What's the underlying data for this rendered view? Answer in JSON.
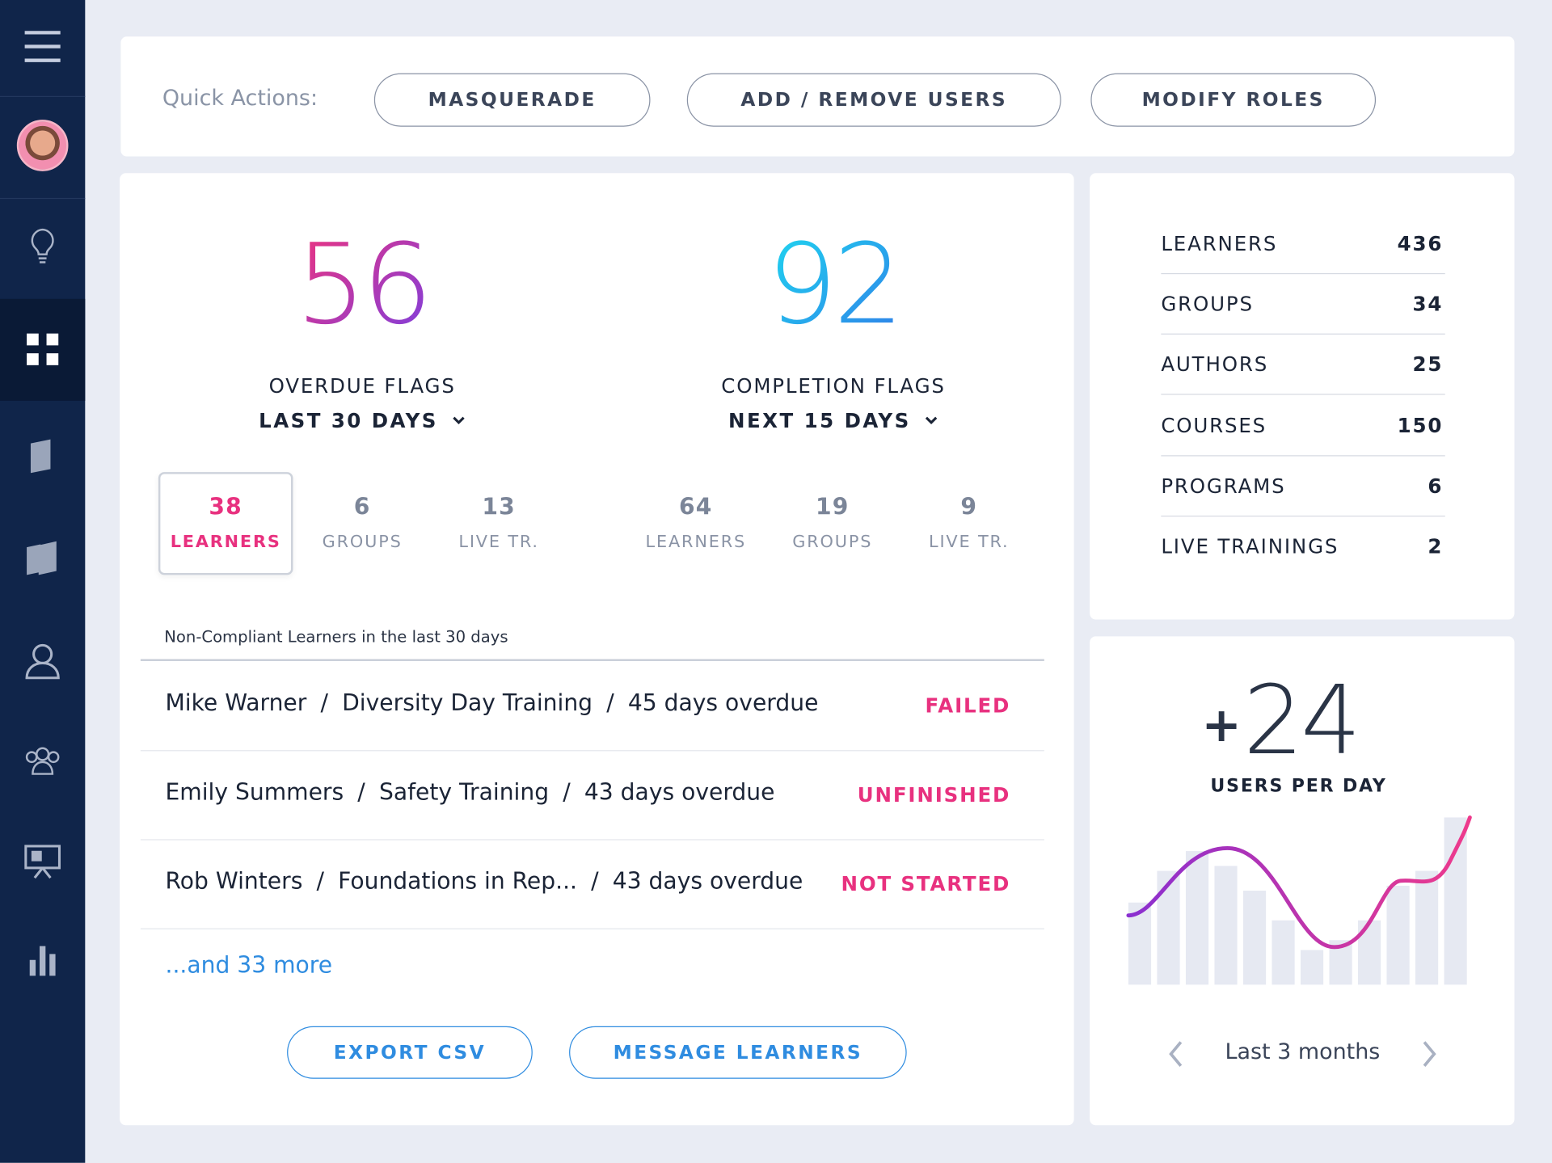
{
  "quick_actions": {
    "label": "Quick Actions:",
    "buttons": [
      "MASQUERADE",
      "ADD / REMOVE USERS",
      "MODIFY ROLES"
    ]
  },
  "flags": [
    {
      "number": 56,
      "title": "OVERDUE FLAGS",
      "period": "LAST 30 DAYS",
      "stats": [
        {
          "value": 38,
          "label": "LEARNERS"
        },
        {
          "value": 6,
          "label": "GROUPS"
        },
        {
          "value": 13,
          "label": "LIVE TR."
        }
      ]
    },
    {
      "number": 92,
      "title": "COMPLETION FLAGS",
      "period": "NEXT 15 DAYS",
      "stats": [
        {
          "value": 64,
          "label": "LEARNERS"
        },
        {
          "value": 19,
          "label": "GROUPS"
        },
        {
          "value": 9,
          "label": "LIVE TR."
        }
      ]
    }
  ],
  "list": {
    "caption": "Non-Compliant Learners in the last 30 days",
    "separator": "/",
    "rows": [
      {
        "name": "Mike Warner",
        "course": "Diversity Day Training",
        "overdue": "45 days overdue",
        "status": "FAILED"
      },
      {
        "name": "Emily Summers",
        "course": "Safety Training",
        "overdue": "43 days overdue",
        "status": "UNFINISHED"
      },
      {
        "name": "Rob Winters",
        "course": "Foundations in Rep...",
        "overdue": "43 days overdue",
        "status": "NOT STARTED"
      }
    ],
    "more": "...and 33 more"
  },
  "actions": [
    "EXPORT CSV",
    "MESSAGE LEARNERS"
  ],
  "totals": [
    {
      "label": "LEARNERS",
      "value": 436
    },
    {
      "label": "GROUPS",
      "value": 34
    },
    {
      "label": "AUTHORS",
      "value": 25
    },
    {
      "label": "COURSES",
      "value": 150
    },
    {
      "label": "PROGRAMS",
      "value": 6
    },
    {
      "label": "LIVE TRAININGS",
      "value": 2
    }
  ],
  "users_per_day": {
    "sign": "+",
    "value": 24,
    "label": "USERS PER DAY",
    "period": "Last 3 months",
    "bars": [
      83,
      115,
      135,
      120,
      95,
      65,
      35,
      45,
      65,
      100,
      115,
      169
    ]
  }
}
